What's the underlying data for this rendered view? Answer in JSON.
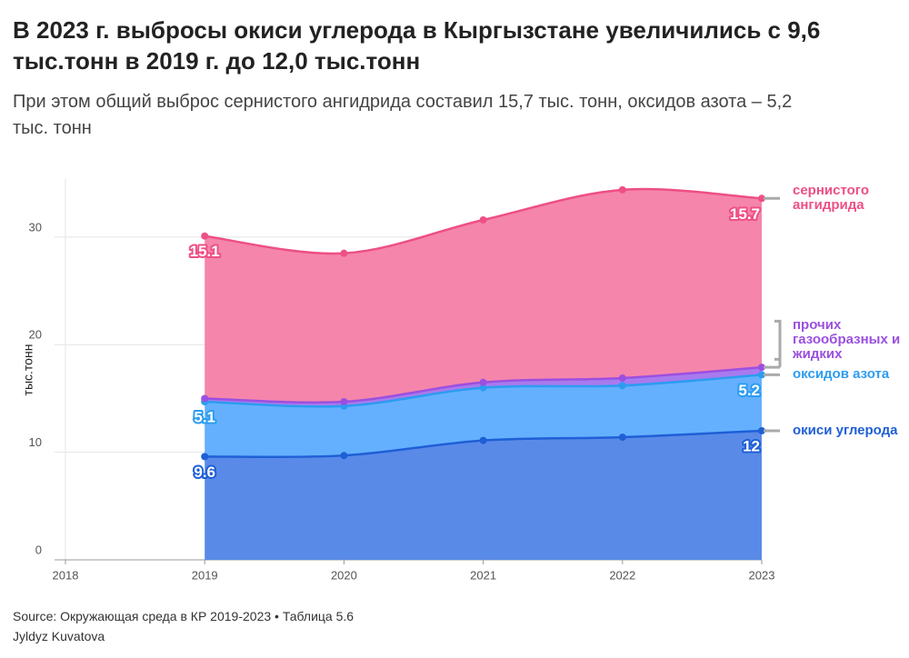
{
  "chart_data": {
    "type": "stacked_area",
    "title": "В 2023 г. выбросы окиси углерода в Кыргызстане увеличились с 9,6 тыс.тонн в 2019 г. до 12,0 тыс.тонн",
    "subtitle": "При этом общий выброс сернистого ангидрида составил 15,7 тыс. тонн, оксидов азота – 5,2 тыс. тонн",
    "y_label": "тыс.тонн",
    "x": [
      2019,
      2020,
      2021,
      2022,
      2023
    ],
    "xlim": [
      2018,
      2023
    ],
    "xticks": [
      2018,
      2019,
      2020,
      2021,
      2022,
      2023
    ],
    "ylim": [
      0,
      35.4
    ],
    "yticks": [
      0,
      10,
      20,
      30
    ],
    "grid": true,
    "series": [
      {
        "name": "окиси углерода",
        "color": "#5a8ae8",
        "line_color": "#1f5fd6",
        "data_labels": true,
        "values": [
          9.6,
          9.7,
          11.1,
          11.4,
          12
        ]
      },
      {
        "name": "оксидов азота",
        "color": "#64b0ff",
        "line_color": "#2c9cf0",
        "data_labels": true,
        "values": [
          5.1,
          4.6,
          4.9,
          4.8,
          5.2
        ]
      },
      {
        "name": "прочих газообразных и жидких",
        "color": "#a87aee",
        "line_color": "#9b4fe0",
        "data_labels": false,
        "values": [
          0.3,
          0.4,
          0.5,
          0.7,
          0.7
        ]
      },
      {
        "name": "сернистого ангидрида",
        "color": "#f585ab",
        "line_color": "#ee4f86",
        "data_labels": true,
        "values": [
          15.1,
          13.8,
          15.1,
          17.5,
          15.7
        ]
      }
    ],
    "source": "Source: Окружающая среда в КР 2019-2023 • Таблица 5.6",
    "author": "Jyldyz Kuvatova"
  }
}
